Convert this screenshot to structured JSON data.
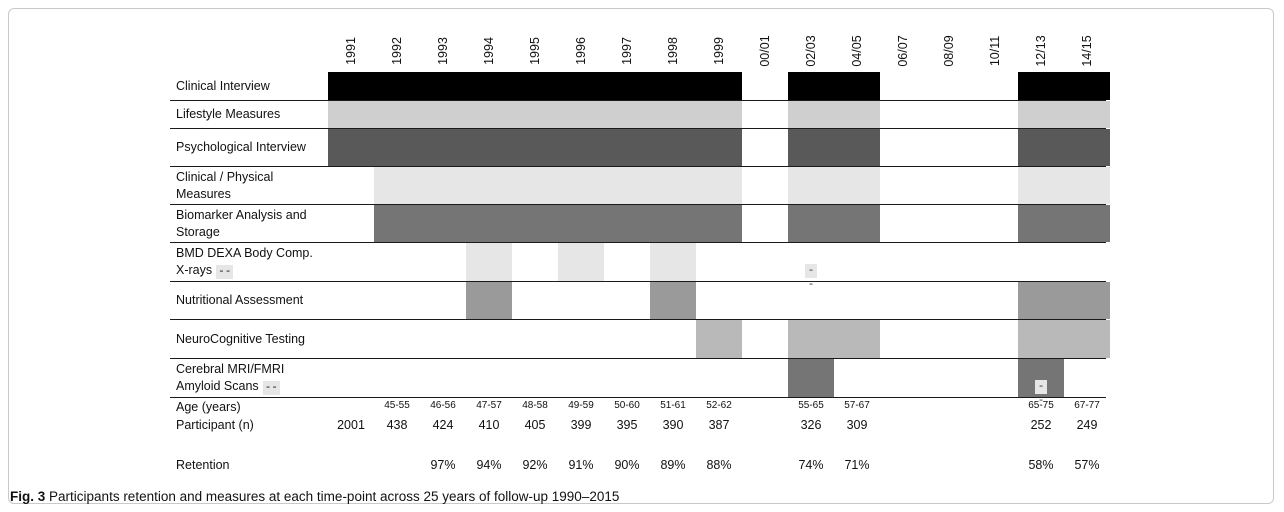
{
  "columns": [
    "1991",
    "1992",
    "1993",
    "1994",
    "1995",
    "1996",
    "1997",
    "1998",
    "1999",
    "00/01",
    "02/03",
    "04/05",
    "06/07",
    "08/09",
    "10/11",
    "12/13",
    "14/15"
  ],
  "colors": {
    "black": "#000000",
    "light": "#cfcfcf",
    "dark": "#595959",
    "verylight": "#e6e6e6",
    "mid": "#757575",
    "medium": "#9a9a9a",
    "neuro": "#b9b9b9"
  },
  "rows": [
    {
      "label": "Clinical Interview",
      "color": "black",
      "dash": false,
      "bars": [
        [
          0,
          9
        ],
        [
          10,
          12
        ],
        [
          15,
          17
        ]
      ]
    },
    {
      "label": "Lifestyle Measures",
      "color": "light",
      "dash": false,
      "bars": [
        [
          0,
          9
        ],
        [
          10,
          12
        ],
        [
          15,
          17
        ]
      ]
    },
    {
      "label": "Psychological Interview",
      "color": "dark",
      "dash": false,
      "bars": [
        [
          0,
          9
        ],
        [
          10,
          12
        ],
        [
          15,
          17
        ]
      ]
    },
    {
      "label": "Clinical / Physical Measures",
      "color": "verylight",
      "dash": false,
      "bars": [
        [
          1,
          9
        ],
        [
          10,
          12
        ],
        [
          15,
          17
        ]
      ]
    },
    {
      "label": "Biomarker Analysis and Storage",
      "color": "mid",
      "dash": false,
      "bars": [
        [
          1,
          9
        ],
        [
          10,
          12
        ],
        [
          15,
          17
        ]
      ]
    },
    {
      "label": "BMD DEXA Body Comp. X-rays",
      "color": "verylight",
      "dash": true,
      "bars": [
        [
          3,
          4
        ],
        [
          5,
          6
        ],
        [
          7,
          8
        ]
      ]
    },
    {
      "label": "Nutritional Assessment",
      "color": "medium",
      "dash": false,
      "bars": [
        [
          3,
          4
        ],
        [
          7,
          8
        ],
        [
          15,
          17
        ]
      ]
    },
    {
      "label": "NeuroCognitive Testing",
      "color": "neuro",
      "dash": false,
      "bars": [
        [
          8,
          9
        ],
        [
          10,
          12
        ],
        [
          15,
          17
        ]
      ]
    },
    {
      "label": "Cerebral MRI/FMRI Amyloid Scans",
      "color": "mid",
      "dash": true,
      "bars": [
        [
          10,
          11
        ],
        [
          15,
          16
        ]
      ]
    }
  ],
  "grid_markers": [
    {
      "row": 5,
      "col": 10,
      "text": "--"
    },
    {
      "row": 8,
      "col": 15,
      "text": "--"
    }
  ],
  "dash_text": "--",
  "age": {
    "label": "Age (years)",
    "values": [
      "",
      "45-55",
      "46-56",
      "47-57",
      "48-58",
      "49-59",
      "50-60",
      "51-61",
      "52-62",
      "",
      "55-65",
      "57-67",
      "",
      "",
      "",
      "65-75",
      "67-77"
    ]
  },
  "participants": {
    "label": "Participant (n)",
    "values": [
      "2001",
      "438",
      "424",
      "410",
      "405",
      "399",
      "395",
      "390",
      "387",
      "",
      "326",
      "309",
      "",
      "",
      "",
      "252",
      "249"
    ]
  },
  "retention": {
    "label": "Retention",
    "values": [
      "",
      "",
      "97%",
      "94%",
      "92%",
      "91%",
      "90%",
      "89%",
      "88%",
      "",
      "74%",
      "71%",
      "",
      "",
      "",
      "58%",
      "57%"
    ]
  },
  "caption": {
    "prefix": "Fig. 3",
    "text": "Participants retention and measures at each time-point across 25 years of follow-up 1990–2015"
  }
}
